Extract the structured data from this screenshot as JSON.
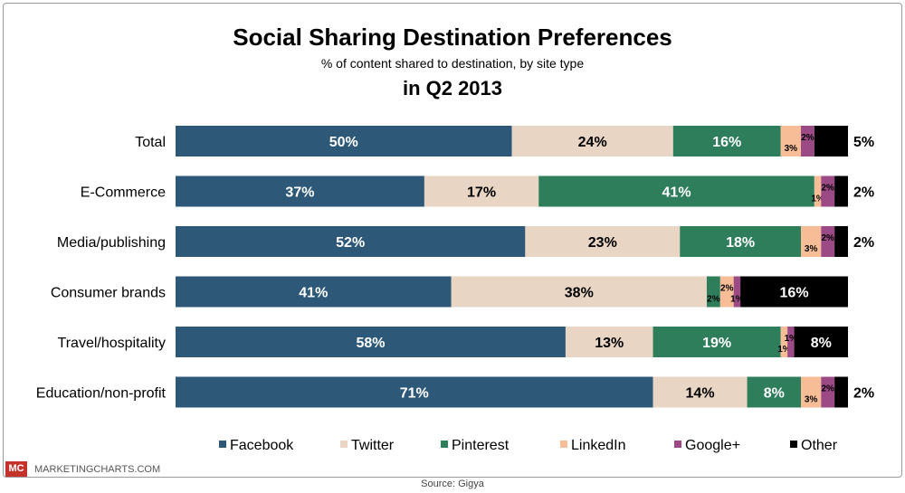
{
  "chart_data": {
    "type": "bar",
    "orientation": "horizontal",
    "stacked": true,
    "title": "Social Sharing Destination Preferences",
    "subtitle": "% of content shared to destination, by site type",
    "period": "in Q2 2013",
    "categories": [
      "Total",
      "E-Commerce",
      "Media/publishing",
      "Consumer brands",
      "Travel/hospitality",
      "Education/non-profit"
    ],
    "series": [
      {
        "name": "Facebook",
        "color": "#2d5878",
        "values": [
          50,
          37,
          52,
          41,
          58,
          71
        ],
        "labels": [
          "50%",
          "37%",
          "52%",
          "41%",
          "58%",
          "71%"
        ]
      },
      {
        "name": "Twitter",
        "color": "#e8d5c4",
        "values": [
          24,
          17,
          23,
          38,
          13,
          14
        ],
        "labels": [
          "24%",
          "17%",
          "23%",
          "38%",
          "13%",
          "14%"
        ]
      },
      {
        "name": "Pinterest",
        "color": "#2e7d5b",
        "values": [
          16,
          41,
          18,
          2,
          19,
          8
        ],
        "labels": [
          "16%",
          "41%",
          "18%",
          "2%",
          "19%",
          "8%"
        ]
      },
      {
        "name": "LinkedIn",
        "color": "#f6bd97",
        "values": [
          3,
          1,
          3,
          2,
          1,
          3
        ],
        "labels": [
          "3%",
          "1%",
          "3%",
          "2%",
          "1%",
          "3%"
        ]
      },
      {
        "name": "Google+",
        "color": "#9c4a86",
        "values": [
          2,
          2,
          2,
          1,
          1,
          2
        ],
        "labels": [
          "2%",
          "2%",
          "2%",
          "1%",
          "1%",
          "2%"
        ]
      },
      {
        "name": "Other",
        "color": "#000000",
        "values": [
          5,
          2,
          2,
          16,
          8,
          2
        ],
        "labels": [
          "5%",
          "2%",
          "2%",
          "16%",
          "8%",
          "2%"
        ]
      }
    ],
    "legend_position": "bottom",
    "xlim": [
      0,
      100
    ]
  },
  "footer": {
    "logo": "MC",
    "brand": "MARKETINGCHARTS.COM",
    "source": "Source: Gigya"
  }
}
